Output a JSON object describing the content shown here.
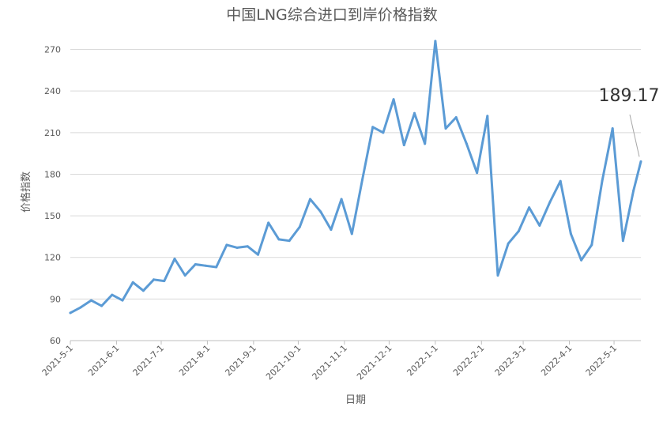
{
  "chart_data": {
    "type": "line",
    "title": "中国LNG综合进口到岸价格指数",
    "xlabel": "日期",
    "ylabel": "价格指数",
    "ylim": [
      60,
      280
    ],
    "yticks": [
      60,
      90,
      120,
      150,
      180,
      210,
      240,
      270
    ],
    "xlim": [
      "2021-05-01",
      "2022-05-19"
    ],
    "xticks": [
      "2021-5-1",
      "2021-6-1",
      "2021-7-1",
      "2021-8-1",
      "2021-9-1",
      "2021-10-1",
      "2021-11-1",
      "2021-12-1",
      "2022-1-1",
      "2022-2-1",
      "2022-3-1",
      "2022-4-1",
      "2022-5-1"
    ],
    "grid": "horizontal",
    "legend": "none",
    "color": "#5B9BD5",
    "series": [
      {
        "x": [
          "2021-05-01",
          "2021-05-08",
          "2021-05-15",
          "2021-05-22",
          "2021-05-29",
          "2021-06-05",
          "2021-06-12",
          "2021-06-19",
          "2021-06-26",
          "2021-07-03",
          "2021-07-10",
          "2021-07-17",
          "2021-07-24",
          "2021-07-31",
          "2021-08-07",
          "2021-08-14",
          "2021-08-21",
          "2021-08-28",
          "2021-09-04",
          "2021-09-11",
          "2021-09-18",
          "2021-09-25",
          "2021-10-02",
          "2021-10-09",
          "2021-10-16",
          "2021-10-23",
          "2021-10-30",
          "2021-11-06",
          "2021-11-13",
          "2021-11-20",
          "2021-11-27",
          "2021-12-04",
          "2021-12-11",
          "2021-12-18",
          "2021-12-25",
          "2022-01-01",
          "2022-01-08",
          "2022-01-15",
          "2022-01-22",
          "2022-01-29",
          "2022-02-05",
          "2022-02-12",
          "2022-02-19",
          "2022-02-26",
          "2022-03-05",
          "2022-03-12",
          "2022-03-19",
          "2022-03-26",
          "2022-04-02",
          "2022-04-09",
          "2022-04-16",
          "2022-04-23",
          "2022-04-30",
          "2022-05-07",
          "2022-05-14",
          "2022-05-19"
        ],
        "values": [
          80,
          84,
          89,
          85,
          93,
          89,
          102,
          96,
          104,
          103,
          119,
          107,
          115,
          114,
          113,
          129,
          127,
          128,
          122,
          145,
          133,
          132,
          142,
          162,
          153,
          140,
          162,
          137,
          176,
          214,
          210,
          234,
          201,
          224,
          202,
          276,
          213,
          221,
          202,
          181,
          222,
          107,
          130,
          139,
          156,
          143,
          160,
          175,
          137,
          118,
          129,
          175,
          213,
          132,
          168,
          189.17
        ]
      }
    ],
    "annotation": {
      "text": "189.17",
      "value": 189.17,
      "date": "2022-05-19"
    }
  }
}
